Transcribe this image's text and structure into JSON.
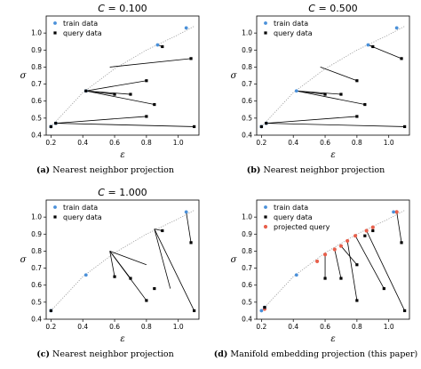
{
  "chart_data": [
    {
      "type": "scatter",
      "title": "C = 0.100",
      "title_var": "C",
      "title_value": "= 0.100",
      "caption_tag": "(a)",
      "caption_text": "Nearest neighbor projection",
      "xlabel": "ε",
      "ylabel": "σ",
      "xlim": [
        0.17,
        1.13
      ],
      "ylim": [
        0.4,
        1.1
      ],
      "xticks": [
        "0.2",
        "0.4",
        "0.6",
        "0.8",
        "1.0"
      ],
      "yticks": [
        "0.4",
        "0.5",
        "0.6",
        "0.7",
        "0.8",
        "0.9",
        "1.0"
      ],
      "legend": [
        "train data",
        "query data"
      ],
      "legend_position": "top-left",
      "train": [
        [
          0.2,
          0.45
        ],
        [
          0.23,
          0.47
        ],
        [
          0.42,
          0.66
        ],
        [
          0.87,
          0.93
        ],
        [
          1.05,
          1.03
        ]
      ],
      "query": [
        [
          0.2,
          0.45
        ],
        [
          0.23,
          0.47
        ],
        [
          0.42,
          0.66
        ],
        [
          0.6,
          0.64
        ],
        [
          0.7,
          0.64
        ],
        [
          0.8,
          0.72
        ],
        [
          0.8,
          0.51
        ],
        [
          0.85,
          0.58
        ],
        [
          0.9,
          0.92
        ],
        [
          1.08,
          0.85
        ],
        [
          1.1,
          0.45
        ]
      ],
      "projections": [
        [
          [
            0.2,
            0.45
          ],
          [
            0.2,
            0.45
          ]
        ],
        [
          [
            0.23,
            0.47
          ],
          [
            1.1,
            0.45
          ]
        ],
        [
          [
            0.23,
            0.47
          ],
          [
            0.8,
            0.51
          ]
        ],
        [
          [
            0.42,
            0.66
          ],
          [
            0.85,
            0.58
          ]
        ],
        [
          [
            0.42,
            0.66
          ],
          [
            0.8,
            0.72
          ]
        ],
        [
          [
            0.42,
            0.66
          ],
          [
            0.7,
            0.64
          ]
        ],
        [
          [
            0.42,
            0.66
          ],
          [
            0.6,
            0.64
          ]
        ],
        [
          [
            0.57,
            0.8
          ],
          [
            1.08,
            0.85
          ]
        ],
        [
          [
            0.87,
            0.93
          ],
          [
            0.9,
            0.92
          ]
        ]
      ],
      "projected_query": [],
      "curve": [
        [
          0.2,
          0.45
        ],
        [
          0.4,
          0.65
        ],
        [
          0.6,
          0.79
        ],
        [
          0.8,
          0.9
        ],
        [
          1.0,
          0.99
        ],
        [
          1.1,
          1.04
        ]
      ]
    },
    {
      "type": "scatter",
      "title": "C = 0.500",
      "title_var": "C",
      "title_value": "= 0.500",
      "caption_tag": "(b)",
      "caption_text": "Nearest neighbor projection",
      "xlabel": "ε",
      "ylabel": "σ",
      "xlim": [
        0.17,
        1.13
      ],
      "ylim": [
        0.4,
        1.1
      ],
      "xticks": [
        "0.2",
        "0.4",
        "0.6",
        "0.8",
        "1.0"
      ],
      "yticks": [
        "0.4",
        "0.5",
        "0.6",
        "0.7",
        "0.8",
        "0.9",
        "1.0"
      ],
      "legend": [
        "train data",
        "query data"
      ],
      "legend_position": "top-left",
      "train": [
        [
          0.2,
          0.45
        ],
        [
          0.23,
          0.47
        ],
        [
          0.42,
          0.66
        ],
        [
          0.87,
          0.93
        ],
        [
          1.05,
          1.03
        ]
      ],
      "query": [
        [
          0.2,
          0.45
        ],
        [
          0.23,
          0.47
        ],
        [
          0.6,
          0.64
        ],
        [
          0.7,
          0.64
        ],
        [
          0.8,
          0.72
        ],
        [
          0.8,
          0.51
        ],
        [
          0.85,
          0.58
        ],
        [
          0.9,
          0.92
        ],
        [
          1.08,
          0.85
        ],
        [
          1.1,
          0.45
        ]
      ],
      "projections": [
        [
          [
            0.23,
            0.47
          ],
          [
            1.1,
            0.45
          ]
        ],
        [
          [
            0.23,
            0.47
          ],
          [
            0.8,
            0.51
          ]
        ],
        [
          [
            0.42,
            0.66
          ],
          [
            0.85,
            0.58
          ]
        ],
        [
          [
            0.42,
            0.66
          ],
          [
            0.7,
            0.64
          ]
        ],
        [
          [
            0.42,
            0.66
          ],
          [
            0.6,
            0.64
          ]
        ],
        [
          [
            0.57,
            0.8
          ],
          [
            0.8,
            0.72
          ]
        ],
        [
          [
            0.87,
            0.93
          ],
          [
            1.08,
            0.85
          ]
        ],
        [
          [
            0.87,
            0.93
          ],
          [
            0.9,
            0.92
          ]
        ]
      ],
      "projected_query": [],
      "curve": [
        [
          0.2,
          0.45
        ],
        [
          0.4,
          0.65
        ],
        [
          0.6,
          0.79
        ],
        [
          0.8,
          0.9
        ],
        [
          1.0,
          0.99
        ],
        [
          1.1,
          1.04
        ]
      ]
    },
    {
      "type": "scatter",
      "title": "C = 1.000",
      "title_var": "C",
      "title_value": "= 1.000",
      "caption_tag": "(c)",
      "caption_text": "Nearest neighbor projection",
      "xlabel": "ε",
      "ylabel": "σ",
      "xlim": [
        0.17,
        1.13
      ],
      "ylim": [
        0.4,
        1.1
      ],
      "xticks": [
        "0.2",
        "0.4",
        "0.6",
        "0.8",
        "1.0"
      ],
      "yticks": [
        "0.4",
        "0.5",
        "0.6",
        "0.7",
        "0.8",
        "0.9",
        "1.0"
      ],
      "legend": [
        "train data",
        "query data"
      ],
      "legend_position": "top-left",
      "train": [
        [
          0.2,
          0.45
        ],
        [
          0.42,
          0.66
        ],
        [
          1.05,
          1.03
        ]
      ],
      "query": [
        [
          0.2,
          0.45
        ],
        [
          0.6,
          0.65
        ],
        [
          0.7,
          0.64
        ],
        [
          0.8,
          0.51
        ],
        [
          0.85,
          0.58
        ],
        [
          0.9,
          0.92
        ],
        [
          1.08,
          0.85
        ],
        [
          1.1,
          0.45
        ]
      ],
      "projections": [
        [
          [
            0.57,
            0.8
          ],
          [
            0.6,
            0.65
          ]
        ],
        [
          [
            0.57,
            0.8
          ],
          [
            0.7,
            0.64
          ]
        ],
        [
          [
            0.57,
            0.8
          ],
          [
            0.8,
            0.51
          ]
        ],
        [
          [
            0.57,
            0.8
          ],
          [
            0.8,
            0.72
          ]
        ],
        [
          [
            0.85,
            0.93
          ],
          [
            0.9,
            0.92
          ]
        ],
        [
          [
            0.85,
            0.93
          ],
          [
            0.95,
            0.58
          ]
        ],
        [
          [
            0.85,
            0.93
          ],
          [
            1.1,
            0.45
          ]
        ],
        [
          [
            1.05,
            1.03
          ],
          [
            1.08,
            0.85
          ]
        ]
      ],
      "projected_query": [],
      "curve": [
        [
          0.2,
          0.45
        ],
        [
          0.4,
          0.65
        ],
        [
          0.6,
          0.79
        ],
        [
          0.8,
          0.9
        ],
        [
          1.0,
          0.99
        ],
        [
          1.1,
          1.04
        ]
      ]
    },
    {
      "type": "scatter",
      "title": "",
      "caption_tag": "(d)",
      "caption_text": "Manifold embedding projection (this paper)",
      "xlabel": "ε",
      "ylabel": "σ",
      "xlim": [
        0.17,
        1.13
      ],
      "ylim": [
        0.4,
        1.1
      ],
      "xticks": [
        "0.2",
        "0.4",
        "0.6",
        "0.8",
        "1.0"
      ],
      "yticks": [
        "0.4",
        "0.5",
        "0.6",
        "0.7",
        "0.8",
        "0.9",
        "1.0"
      ],
      "legend": [
        "train data",
        "query data",
        "projected query"
      ],
      "legend_position": "top-left",
      "train": [
        [
          0.2,
          0.45
        ],
        [
          0.22,
          0.47
        ],
        [
          0.42,
          0.66
        ],
        [
          1.03,
          1.03
        ]
      ],
      "query": [
        [
          0.22,
          0.47
        ],
        [
          0.6,
          0.64
        ],
        [
          0.7,
          0.64
        ],
        [
          0.8,
          0.72
        ],
        [
          0.8,
          0.51
        ],
        [
          0.85,
          0.89
        ],
        [
          0.9,
          0.92
        ],
        [
          0.97,
          0.58
        ],
        [
          1.08,
          0.85
        ],
        [
          1.1,
          0.45
        ]
      ],
      "projections": [
        [
          [
            0.6,
            0.78
          ],
          [
            0.6,
            0.64
          ]
        ],
        [
          [
            0.66,
            0.81
          ],
          [
            0.7,
            0.64
          ]
        ],
        [
          [
            0.7,
            0.83
          ],
          [
            0.8,
            0.72
          ]
        ],
        [
          [
            0.74,
            0.86
          ],
          [
            0.8,
            0.51
          ]
        ],
        [
          [
            0.79,
            0.89
          ],
          [
            0.97,
            0.58
          ]
        ],
        [
          [
            0.86,
            0.92
          ],
          [
            1.1,
            0.45
          ]
        ],
        [
          [
            1.05,
            1.03
          ],
          [
            1.08,
            0.85
          ]
        ]
      ],
      "projected_query": [
        [
          0.22,
          0.46
        ],
        [
          0.55,
          0.74
        ],
        [
          0.6,
          0.78
        ],
        [
          0.66,
          0.81
        ],
        [
          0.7,
          0.83
        ],
        [
          0.74,
          0.86
        ],
        [
          0.79,
          0.89
        ],
        [
          0.86,
          0.92
        ],
        [
          0.9,
          0.94
        ],
        [
          1.05,
          1.03
        ]
      ],
      "curve": [
        [
          0.2,
          0.45
        ],
        [
          0.4,
          0.65
        ],
        [
          0.6,
          0.79
        ],
        [
          0.8,
          0.9
        ],
        [
          1.0,
          0.99
        ],
        [
          1.1,
          1.04
        ]
      ]
    }
  ],
  "colors": {
    "train": "#4a90d9",
    "train_light": "#9cc3ee",
    "query": "#000000",
    "projected": "#e8604c",
    "curve": "#999999",
    "line": "#000000"
  },
  "icons": {
    "train_marker": "blue-dot-icon",
    "query_marker": "black-square-icon",
    "projected_marker": "red-dot-icon"
  }
}
